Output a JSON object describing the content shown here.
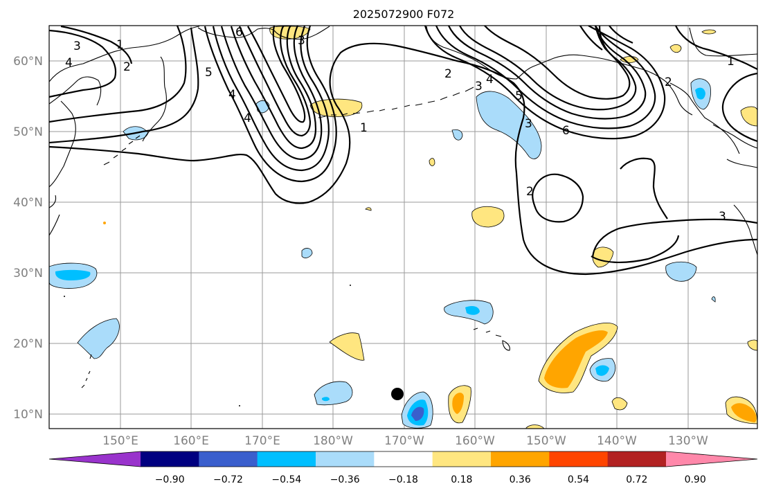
{
  "title": "2025072900 F072",
  "lat_labels": [
    "60°N",
    "50°N",
    "40°N",
    "30°N",
    "20°N",
    "10°N"
  ],
  "lon_labels": [
    "150°E",
    "160°E",
    "170°E",
    "180°W",
    "170°W",
    "160°W",
    "150°W",
    "140°W",
    "130°W"
  ],
  "colorbar": {
    "ticks": [
      "−0.90",
      "−0.72",
      "−0.54",
      "−0.36",
      "−0.18",
      "0.18",
      "0.36",
      "0.54",
      "0.72",
      "0.90"
    ],
    "colors": [
      "#9933cc",
      "#000080",
      "#3a5fcd",
      "#00bfff",
      "#aadcfa",
      "#ffffff",
      "#ffe680",
      "#ffa500",
      "#ff4500",
      "#b22222",
      "#ff88aa"
    ]
  },
  "contour_labels": [
    "3",
    "1",
    "4",
    "2",
    "6",
    "3",
    "4",
    "5",
    "4",
    "1",
    "2",
    "5",
    "3",
    "6",
    "2",
    "3",
    "1",
    "4",
    "3",
    "2"
  ],
  "marker": "black dot"
}
